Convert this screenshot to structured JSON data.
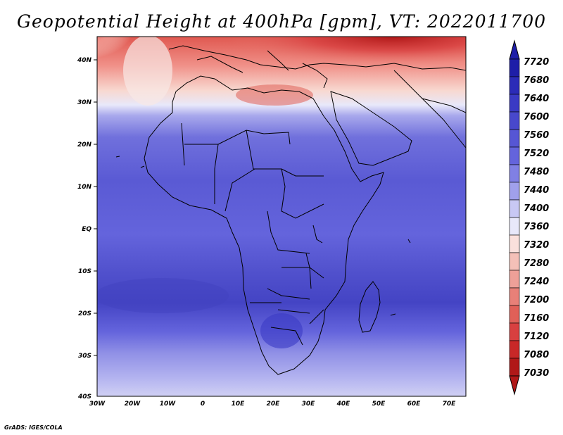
{
  "title": "Geopotential Height at 400hPa [gpm], VT: 2022011700",
  "credit": "GrADS: IGES/COLA",
  "lat_labels": [
    "40N",
    "30N",
    "20N",
    "10N",
    "EQ",
    "10S",
    "20S",
    "30S",
    "40S"
  ],
  "lon_labels": [
    "30W",
    "20W",
    "10W",
    "0",
    "10E",
    "20E",
    "30E",
    "40E",
    "50E",
    "60E",
    "70E"
  ],
  "colorbar": {
    "labels": [
      "7720",
      "7680",
      "7640",
      "7600",
      "7560",
      "7520",
      "7480",
      "7440",
      "7400",
      "7360",
      "7320",
      "7280",
      "7240",
      "7200",
      "7160",
      "7120",
      "7080",
      "7030"
    ],
    "colors": [
      "#1e1ea8",
      "#2b2bb8",
      "#3a3ac4",
      "#4848cc",
      "#5656d4",
      "#6464dc",
      "#8080e4",
      "#a0a0ec",
      "#c8c8f4",
      "#e8e8fa",
      "#fae0dc",
      "#f4c0b8",
      "#eea098",
      "#e88078",
      "#e06058",
      "#d84040",
      "#c82828",
      "#b01818"
    ]
  },
  "colors": {
    "outline": "#000000",
    "deep_blue": "#3c3cc0",
    "mid_blue": "#6666d8",
    "light_blue": "#9090e6",
    "pale_blue": "#c8c8f0",
    "white": "#f4f4fc",
    "pale_red": "#f6c8c0",
    "mid_red": "#e87870",
    "deep_red": "#c02020"
  }
}
